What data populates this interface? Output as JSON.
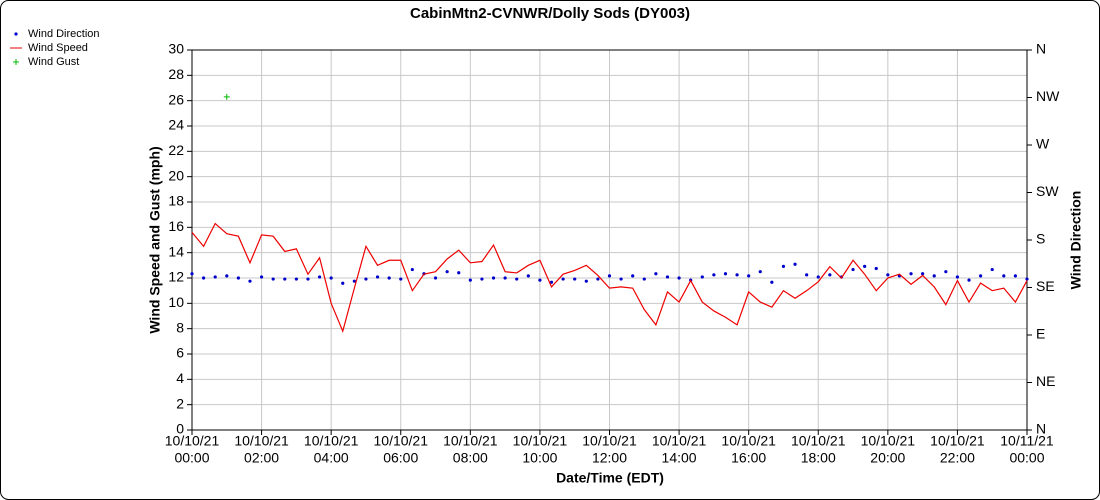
{
  "chart_data": {
    "type": "line",
    "title": "CabinMtn2-CVNWR/Dolly Sods (DY003)",
    "xlabel": "Date/Time (EDT)",
    "ylabel": "Wind Speed and Gust (mph)",
    "y2label": "Wind Direction",
    "x": [
      "10/10/21 00:00",
      "10/10/21 00:20",
      "10/10/21 00:40",
      "10/10/21 01:00",
      "10/10/21 01:20",
      "10/10/21 01:40",
      "10/10/21 02:00",
      "10/10/21 02:20",
      "10/10/21 02:40",
      "10/10/21 03:00",
      "10/10/21 03:20",
      "10/10/21 03:40",
      "10/10/21 04:00",
      "10/10/21 04:20",
      "10/10/21 04:40",
      "10/10/21 05:00",
      "10/10/21 05:20",
      "10/10/21 05:40",
      "10/10/21 06:00",
      "10/10/21 06:20",
      "10/10/21 06:40",
      "10/10/21 07:00",
      "10/10/21 07:20",
      "10/10/21 07:40",
      "10/10/21 08:00",
      "10/10/21 08:20",
      "10/10/21 08:40",
      "10/10/21 09:00",
      "10/10/21 09:20",
      "10/10/21 09:40",
      "10/10/21 10:00",
      "10/10/21 10:20",
      "10/10/21 10:40",
      "10/10/21 11:00",
      "10/10/21 11:20",
      "10/10/21 11:40",
      "10/10/21 12:00",
      "10/10/21 12:20",
      "10/10/21 12:40",
      "10/10/21 13:00",
      "10/10/21 13:20",
      "10/10/21 13:40",
      "10/10/21 14:00",
      "10/10/21 14:20",
      "10/10/21 14:40",
      "10/10/21 15:00",
      "10/10/21 15:20",
      "10/10/21 15:40",
      "10/10/21 16:00",
      "10/10/21 16:20",
      "10/10/21 16:40",
      "10/10/21 17:00",
      "10/10/21 17:20",
      "10/10/21 17:40",
      "10/10/21 18:00",
      "10/10/21 18:20",
      "10/10/21 18:40",
      "10/10/21 19:00",
      "10/10/21 19:20",
      "10/10/21 19:40",
      "10/10/21 20:00",
      "10/10/21 20:20",
      "10/10/21 20:40",
      "10/10/21 21:00",
      "10/10/21 21:20",
      "10/10/21 21:40",
      "10/10/21 22:00",
      "10/10/21 22:20",
      "10/10/21 22:40",
      "10/10/21 23:00",
      "10/10/21 23:20",
      "10/10/21 23:40",
      "10/11/21 00:00"
    ],
    "series": [
      {
        "name": "Wind Direction",
        "color": "#0000cc",
        "axis": "y2",
        "marker": "dot",
        "values": [
          148,
          144,
          145,
          146,
          144,
          141,
          145,
          143,
          143,
          143,
          143,
          145,
          144,
          139,
          141,
          143,
          145,
          144,
          143,
          152,
          148,
          144,
          150,
          149,
          142,
          143,
          144,
          144,
          143,
          146,
          142,
          140,
          143,
          143,
          141,
          143,
          146,
          143,
          146,
          143,
          148,
          145,
          144,
          142,
          145,
          147,
          148,
          147,
          146,
          150,
          140,
          155,
          157,
          147,
          145,
          147,
          145,
          152,
          155,
          153,
          147,
          146,
          148,
          148,
          146,
          150,
          145,
          142,
          146,
          152,
          146,
          146,
          143
        ]
      },
      {
        "name": "Wind Speed",
        "color": "#ee0000",
        "marker": "line",
        "values": [
          15.6,
          14.5,
          16.3,
          15.5,
          15.3,
          13.2,
          15.4,
          15.3,
          14.1,
          14.3,
          12.3,
          13.6,
          10.0,
          7.8,
          11.2,
          14.5,
          13.0,
          13.4,
          13.4,
          11.0,
          12.3,
          12.5,
          13.5,
          14.2,
          13.2,
          13.3,
          14.6,
          12.5,
          12.4,
          13.0,
          13.4,
          11.3,
          12.3,
          12.6,
          13.0,
          12.2,
          11.2,
          11.3,
          11.2,
          9.5,
          8.3,
          10.9,
          10.1,
          11.8,
          10.1,
          9.4,
          8.9,
          8.3,
          10.9,
          10.1,
          9.7,
          11.0,
          10.4,
          11.0,
          11.7,
          12.9,
          12.0,
          13.4,
          12.3,
          11.0,
          12.0,
          12.3,
          11.5,
          12.2,
          11.3,
          9.9,
          11.8,
          10.1,
          11.6,
          11.0,
          11.2,
          10.1,
          11.8
        ]
      },
      {
        "name": "Wind Gust",
        "color": "#00bb00",
        "marker": "plus",
        "values": [
          null,
          null,
          null,
          26.3,
          null,
          null,
          null,
          null,
          null,
          null,
          null,
          null,
          null,
          null,
          null,
          null,
          null,
          null,
          null,
          null,
          null,
          null,
          null,
          null,
          null,
          null,
          null,
          null,
          null,
          null,
          null,
          null,
          null,
          null,
          null,
          null,
          null,
          null,
          null,
          null,
          null,
          null,
          null,
          null,
          null,
          null,
          null,
          null,
          null,
          null,
          null,
          null,
          null,
          null,
          null,
          null,
          null,
          null,
          null,
          null,
          null,
          null,
          null,
          null,
          null,
          null,
          null,
          null,
          null,
          null,
          null,
          null,
          null
        ]
      }
    ],
    "xlim": [
      "10/10/21 00:00",
      "10/11/21 00:00"
    ],
    "xticks": [
      {
        "value": "10/10/21 00:00",
        "label": [
          "10/10/21",
          "00:00"
        ]
      },
      {
        "value": "10/10/21 02:00",
        "label": [
          "10/10/21",
          "02:00"
        ]
      },
      {
        "value": "10/10/21 04:00",
        "label": [
          "10/10/21",
          "04:00"
        ]
      },
      {
        "value": "10/10/21 06:00",
        "label": [
          "10/10/21",
          "06:00"
        ]
      },
      {
        "value": "10/10/21 08:00",
        "label": [
          "10/10/21",
          "08:00"
        ]
      },
      {
        "value": "10/10/21 10:00",
        "label": [
          "10/10/21",
          "10:00"
        ]
      },
      {
        "value": "10/10/21 12:00",
        "label": [
          "10/10/21",
          "12:00"
        ]
      },
      {
        "value": "10/10/21 14:00",
        "label": [
          "10/10/21",
          "14:00"
        ]
      },
      {
        "value": "10/10/21 16:00",
        "label": [
          "10/10/21",
          "16:00"
        ]
      },
      {
        "value": "10/10/21 18:00",
        "label": [
          "10/10/21",
          "18:00"
        ]
      },
      {
        "value": "10/10/21 20:00",
        "label": [
          "10/10/21",
          "20:00"
        ]
      },
      {
        "value": "10/10/21 22:00",
        "label": [
          "10/10/21",
          "22:00"
        ]
      },
      {
        "value": "10/11/21 00:00",
        "label": [
          "10/11/21",
          "00:00"
        ]
      }
    ],
    "ylim": [
      0,
      30
    ],
    "yticks": [
      0,
      2,
      4,
      6,
      8,
      10,
      12,
      14,
      16,
      18,
      20,
      22,
      24,
      26,
      28,
      30
    ],
    "y2lim": [
      0,
      360
    ],
    "y2ticks": [
      {
        "value": 0,
        "label": "N"
      },
      {
        "value": 45,
        "label": "NE"
      },
      {
        "value": 90,
        "label": "E"
      },
      {
        "value": 135,
        "label": "SE"
      },
      {
        "value": 180,
        "label": "S"
      },
      {
        "value": 225,
        "label": "SW"
      },
      {
        "value": 270,
        "label": "W"
      },
      {
        "value": 315,
        "label": "NW"
      },
      {
        "value": 360,
        "label": "N"
      }
    ],
    "grid": true,
    "legend": "top-left"
  }
}
